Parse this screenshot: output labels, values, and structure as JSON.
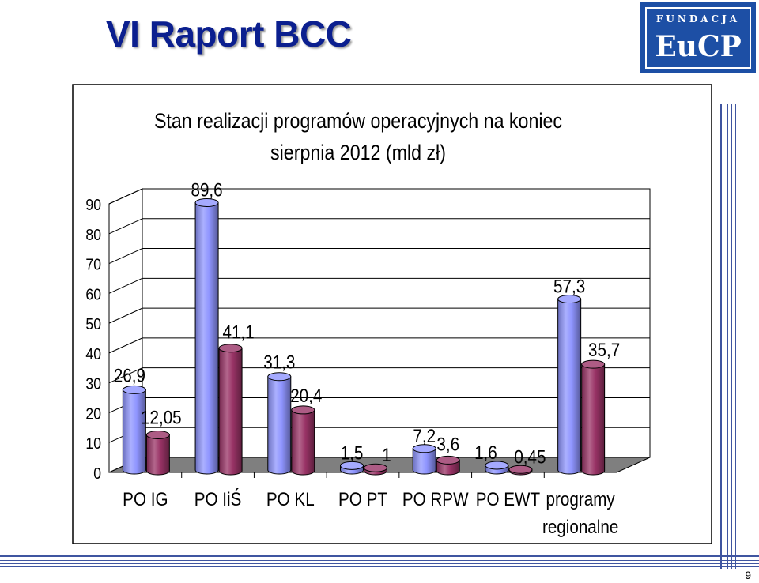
{
  "slide": {
    "title": "VI Raport BCC",
    "page_number": "9"
  },
  "logo": {
    "top_text": "FUNDACJA",
    "bottom_text": "EuCP"
  },
  "colors": {
    "title": "#0b1f8f",
    "series_1": "#8f95ff",
    "series_2": "#993366",
    "logo": "#1d4fa5",
    "rules": "#3f55a0"
  },
  "chart_data": {
    "type": "bar",
    "title": "Stan realizacji programów operacyjnych na koniec sierpnia 2012 (mld zł)",
    "title_lines": [
      "Stan realizacji programów operacyjnych na koniec",
      "sierpnia 2012 (mld zł)"
    ],
    "categories": [
      "PO IG",
      "PO IiŚ",
      "PO KL",
      "PO PT",
      "PO RPW",
      "PO EWT",
      "programy regionalne"
    ],
    "category_lines": [
      [
        "PO IG"
      ],
      [
        "PO IiŚ"
      ],
      [
        "PO KL"
      ],
      [
        "PO PT"
      ],
      [
        "PO RPW"
      ],
      [
        "PO EWT"
      ],
      [
        "programy",
        "regionalne"
      ]
    ],
    "series": [
      {
        "values": [
          26.9,
          89.6,
          31.3,
          1.5,
          7.2,
          1.6,
          57.3
        ],
        "labels": [
          "26,9",
          "89,6",
          "31,3",
          "1,5",
          "7,2",
          "1,6",
          "57,3"
        ]
      },
      {
        "values": [
          12.05,
          41.1,
          20.4,
          1,
          3.6,
          0.45,
          35.7
        ],
        "labels": [
          "12,05",
          "41,1",
          "20,4",
          "1",
          "3,6",
          "0,45",
          "35,7"
        ]
      }
    ],
    "yticks": [
      "0",
      "10",
      "20",
      "30",
      "40",
      "50",
      "60",
      "70",
      "80",
      "90"
    ],
    "ylim": [
      0,
      90
    ],
    "grid": true,
    "legend": "none",
    "style": "3d-cylinder"
  }
}
